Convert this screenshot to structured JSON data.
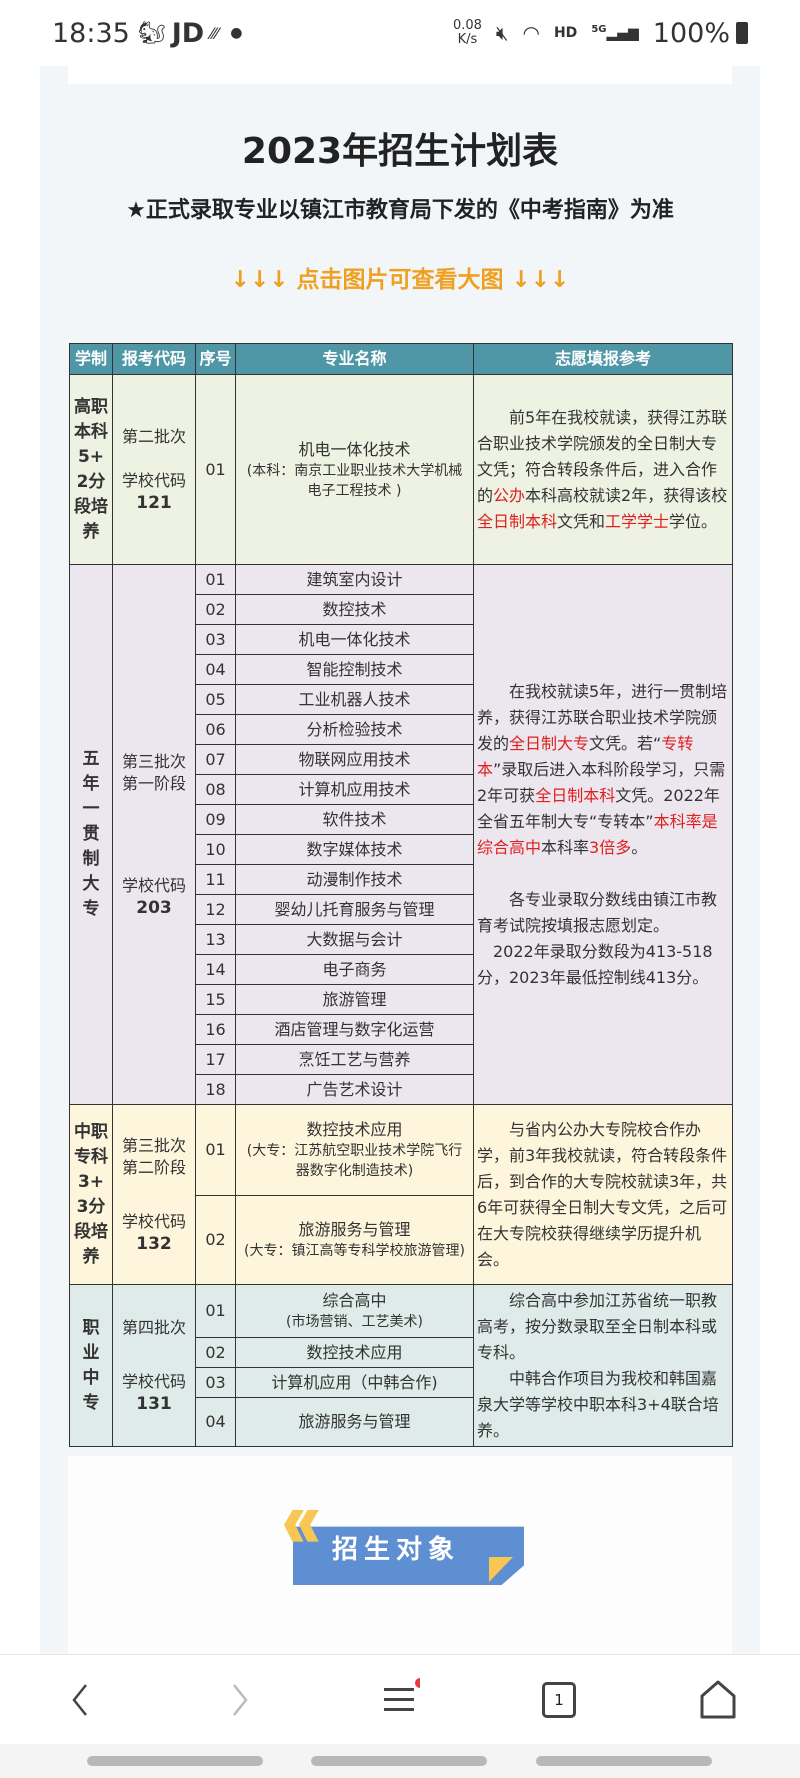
{
  "status_bar": {
    "time": "18:35",
    "app": "JD",
    "speed": "0.08",
    "speed_unit": "K/s",
    "network": "HD",
    "signal": "5G",
    "battery": "100%"
  },
  "page": {
    "title": "2023年招生计划表",
    "subtitle": "★正式录取专业以镇江市教育局下发的《中考指南》为准",
    "hint": "↓↓↓ 点击图片可查看大图 ↓↓↓"
  },
  "table": {
    "headers": [
      "学制",
      "报考代码",
      "序号",
      "专业名称",
      "志愿填报参考"
    ],
    "groups": [
      {
        "category": "高职本科5+2分段培养",
        "batch": "第二批次",
        "code_label": "学校代码",
        "code": "121",
        "majors": [
          {
            "no": "01",
            "name": "机电一体化技术",
            "note": "(本科：南京工业职业技术大学机械电子工程技术 )"
          }
        ],
        "reference": [
          "前5年在我校就读，获得江苏联合职业技术学院颁发的全日制大专文凭；符合转段条件后，进入合作的",
          "公办",
          "本科高校就读2年，获得该校",
          "全日制本科",
          "文凭和",
          "工学学士",
          "学位。"
        ]
      },
      {
        "category": "五年一贯制大专",
        "batch": "第三批次第一阶段",
        "code_label": "学校代码",
        "code": "203",
        "majors": [
          {
            "no": "01",
            "name": "建筑室内设计"
          },
          {
            "no": "02",
            "name": "数控技术"
          },
          {
            "no": "03",
            "name": "机电一体化技术"
          },
          {
            "no": "04",
            "name": "智能控制技术"
          },
          {
            "no": "05",
            "name": "工业机器人技术"
          },
          {
            "no": "06",
            "name": "分析检验技术"
          },
          {
            "no": "07",
            "name": "物联网应用技术"
          },
          {
            "no": "08",
            "name": "计算机应用技术"
          },
          {
            "no": "09",
            "name": "软件技术"
          },
          {
            "no": "10",
            "name": "数字媒体技术"
          },
          {
            "no": "11",
            "name": "动漫制作技术"
          },
          {
            "no": "12",
            "name": "婴幼儿托育服务与管理"
          },
          {
            "no": "13",
            "name": "大数据与会计"
          },
          {
            "no": "14",
            "name": "电子商务"
          },
          {
            "no": "15",
            "name": "旅游管理"
          },
          {
            "no": "16",
            "name": "酒店管理与数字化运营"
          },
          {
            "no": "17",
            "name": "烹饪工艺与营养"
          },
          {
            "no": "18",
            "name": "广告艺术设计"
          }
        ],
        "reference": [
          "在我校就读5年，进行一贯制培养，获得江苏联合职业技术学院颁发的",
          "全日制大专",
          "文凭。若“",
          "专转本",
          "”录取后进入本科阶段学习，只需2年可获",
          "全日制本科",
          "文凭。2022年全省五年制大专“专转本”",
          "本科率是综合高中",
          "本科率",
          "3倍多",
          "。"
        ],
        "reference2": "各专业录取分数线由镇江市教育考试院按填报志愿划定。",
        "reference3": "2022年录取分数段为413-518分，2023年最低控制线413分。"
      },
      {
        "category": "中职专科3+3分段培养",
        "batch": "第三批次第二阶段",
        "code_label": "学校代码",
        "code": "132",
        "majors": [
          {
            "no": "01",
            "name": "数控技术应用",
            "note": "(大专：江苏航空职业技术学院飞行器数字化制造技术)"
          },
          {
            "no": "02",
            "name": "旅游服务与管理",
            "note": "(大专：镇江高等专科学校旅游管理)"
          }
        ],
        "reference": "与省内公办大专院校合作办学，前3年我校就读，符合转段条件后，到合作的大专院校就读3年，共6年可获得全日制大专文凭，之后可在大专院校获得继续学历提升机会。"
      },
      {
        "category": "职业中专",
        "batch": "第四批次",
        "code_label": "学校代码",
        "code": "131",
        "majors": [
          {
            "no": "01",
            "name": "综合高中",
            "note": "(市场营销、工艺美术)"
          },
          {
            "no": "02",
            "name": "数控技术应用"
          },
          {
            "no": "03",
            "name": "计算机应用（中韩合作)"
          },
          {
            "no": "04",
            "name": "旅游服务与管理"
          }
        ],
        "reference": "综合高中参加江苏省统一职教高考，按分数录取至全日制本科或专科。",
        "reference2": "中韩合作项目为我校和韩国嘉泉大学等学校中职本科3+4联合培养。"
      }
    ]
  },
  "section_banner": "招生对象",
  "nav": {
    "tab_count": "1",
    "icons": [
      "back-icon",
      "forward-icon",
      "menu-icon",
      "tabs-icon",
      "home-icon"
    ]
  },
  "colors": {
    "header": "#4f97a6",
    "accent": "#f0a020",
    "red": "#e02020",
    "banner": "#5f8fd3",
    "banner_accent": "#f7c653"
  }
}
